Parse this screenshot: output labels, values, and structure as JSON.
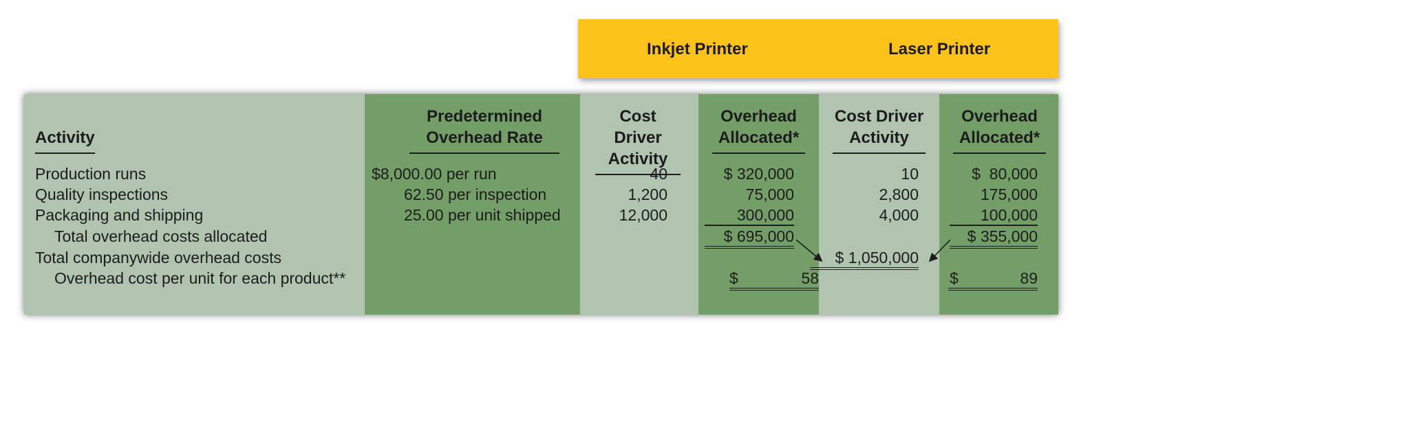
{
  "banner": {
    "product1": "Inkjet Printer",
    "product2": "Laser Printer"
  },
  "headers": {
    "activity": "Activity",
    "rate": "Predetermined Overhead Rate",
    "cda1": "Cost Driver Activity",
    "oh1": "Overhead Allocated*",
    "cda2": "Cost Driver Activity",
    "oh2": "Overhead Allocated*"
  },
  "rows": [
    {
      "activity": "Production runs",
      "rate": "$8,000.00 per run",
      "cda1": "40",
      "oh1": "$ 320,000",
      "cda2": "10",
      "oh2": "$  80,000"
    },
    {
      "activity": "Quality inspections",
      "rate": "62.50 per inspection",
      "cda1": "1,200",
      "oh1": "75,000",
      "cda2": "2,800",
      "oh2": "175,000"
    },
    {
      "activity": "Packaging and shipping",
      "rate": "25.00 per unit shipped",
      "cda1": "12,000",
      "oh1": "300,000",
      "cda2": "4,000",
      "oh2": "100,000"
    }
  ],
  "totals": {
    "label": "Total overhead costs allocated",
    "oh1": "$ 695,000",
    "oh2": "$ 355,000"
  },
  "companywide": {
    "label": "Total companywide overhead costs",
    "value": "$ 1,050,000"
  },
  "per_unit": {
    "label": "Overhead cost per unit for each product**",
    "oh1_sign": "$",
    "oh1": "58",
    "oh2_sign": "$",
    "oh2": "89"
  },
  "colors": {
    "banner": "#fbc31a",
    "light": "#b0c4af",
    "dark": "#749e67"
  }
}
